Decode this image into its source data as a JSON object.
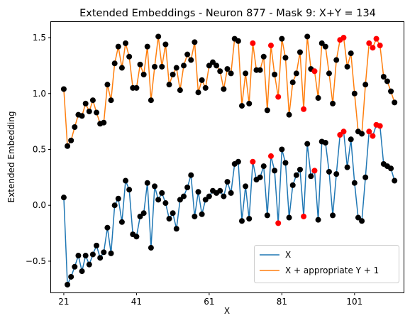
{
  "chart_data": {
    "type": "line",
    "title": "Extended Embeddings - Neuron 877 - Mask 9: X+Y = 134",
    "xlabel": "X",
    "ylabel": "Extended Embedding",
    "xlim": [
      17.5,
      114.5
    ],
    "ylim": [
      -0.78,
      1.64
    ],
    "x_ticks": [
      21,
      41,
      61,
      81,
      101
    ],
    "y_ticks": [
      -0.5,
      0.0,
      0.5,
      1.0,
      1.5
    ],
    "y_tick_labels": [
      "−0.5",
      "0.0",
      "0.5",
      "1.0",
      "1.5"
    ],
    "legend_position": "lower-right",
    "grid": false,
    "x_start": 21,
    "highlight_color": "#ff0000",
    "marker_color": "#000000",
    "series": [
      {
        "name": "X",
        "color": "#1f77b4",
        "values": [
          0.07,
          -0.71,
          -0.64,
          -0.55,
          -0.45,
          -0.59,
          -0.45,
          -0.53,
          -0.44,
          -0.36,
          -0.47,
          -0.42,
          -0.2,
          -0.43,
          0.0,
          0.06,
          -0.15,
          0.22,
          0.14,
          -0.26,
          -0.28,
          -0.1,
          -0.07,
          0.2,
          -0.38,
          0.17,
          0.05,
          0.11,
          0.02,
          -0.12,
          -0.07,
          -0.21,
          0.05,
          0.08,
          0.16,
          0.27,
          -0.1,
          0.12,
          -0.08,
          0.05,
          0.08,
          0.13,
          0.11,
          0.13,
          0.08,
          0.21,
          0.11,
          0.37,
          0.39,
          -0.14,
          0.17,
          -0.12,
          0.39,
          0.23,
          0.25,
          0.35,
          -0.09,
          0.44,
          0.31,
          -0.16,
          0.5,
          0.38,
          -0.11,
          0.18,
          0.27,
          0.32,
          -0.1,
          0.55,
          0.26,
          0.31,
          -0.13,
          0.57,
          0.56,
          0.3,
          -0.09,
          0.28,
          0.63,
          0.66,
          0.34,
          0.59,
          0.2,
          -0.11,
          -0.14,
          0.25,
          0.66,
          0.62,
          0.72,
          0.71,
          0.37,
          0.35,
          0.33,
          0.22
        ],
        "highlighted_x": [
          73,
          78,
          80,
          87,
          90,
          97,
          98,
          105,
          106,
          107,
          108
        ]
      },
      {
        "name": "X + appropriate Y + 1",
        "color": "#ff7f0e",
        "values": [
          1.04,
          0.53,
          0.58,
          0.7,
          0.81,
          0.8,
          0.91,
          0.84,
          0.94,
          0.83,
          0.73,
          0.74,
          1.08,
          0.94,
          1.27,
          1.42,
          1.23,
          1.45,
          1.33,
          1.05,
          1.05,
          1.26,
          1.17,
          1.42,
          0.94,
          1.24,
          1.51,
          1.24,
          1.44,
          1.08,
          1.17,
          1.23,
          1.03,
          1.25,
          1.35,
          1.3,
          1.46,
          1.01,
          1.12,
          1.05,
          1.25,
          1.28,
          1.25,
          1.2,
          1.04,
          1.22,
          1.18,
          1.49,
          1.47,
          0.89,
          1.18,
          0.91,
          1.45,
          1.21,
          1.21,
          1.33,
          0.85,
          1.43,
          1.17,
          0.97,
          1.49,
          1.32,
          0.81,
          1.1,
          1.18,
          1.37,
          0.86,
          1.51,
          1.22,
          1.2,
          0.96,
          1.45,
          1.42,
          1.18,
          0.91,
          1.3,
          1.48,
          1.5,
          1.24,
          1.36,
          1.0,
          0.66,
          0.64,
          1.08,
          1.45,
          1.41,
          1.49,
          1.43,
          1.15,
          1.11,
          1.02,
          0.92
        ],
        "highlighted_x": [
          73,
          78,
          80,
          87,
          90,
          97,
          98,
          105,
          106,
          107,
          108
        ]
      }
    ]
  }
}
